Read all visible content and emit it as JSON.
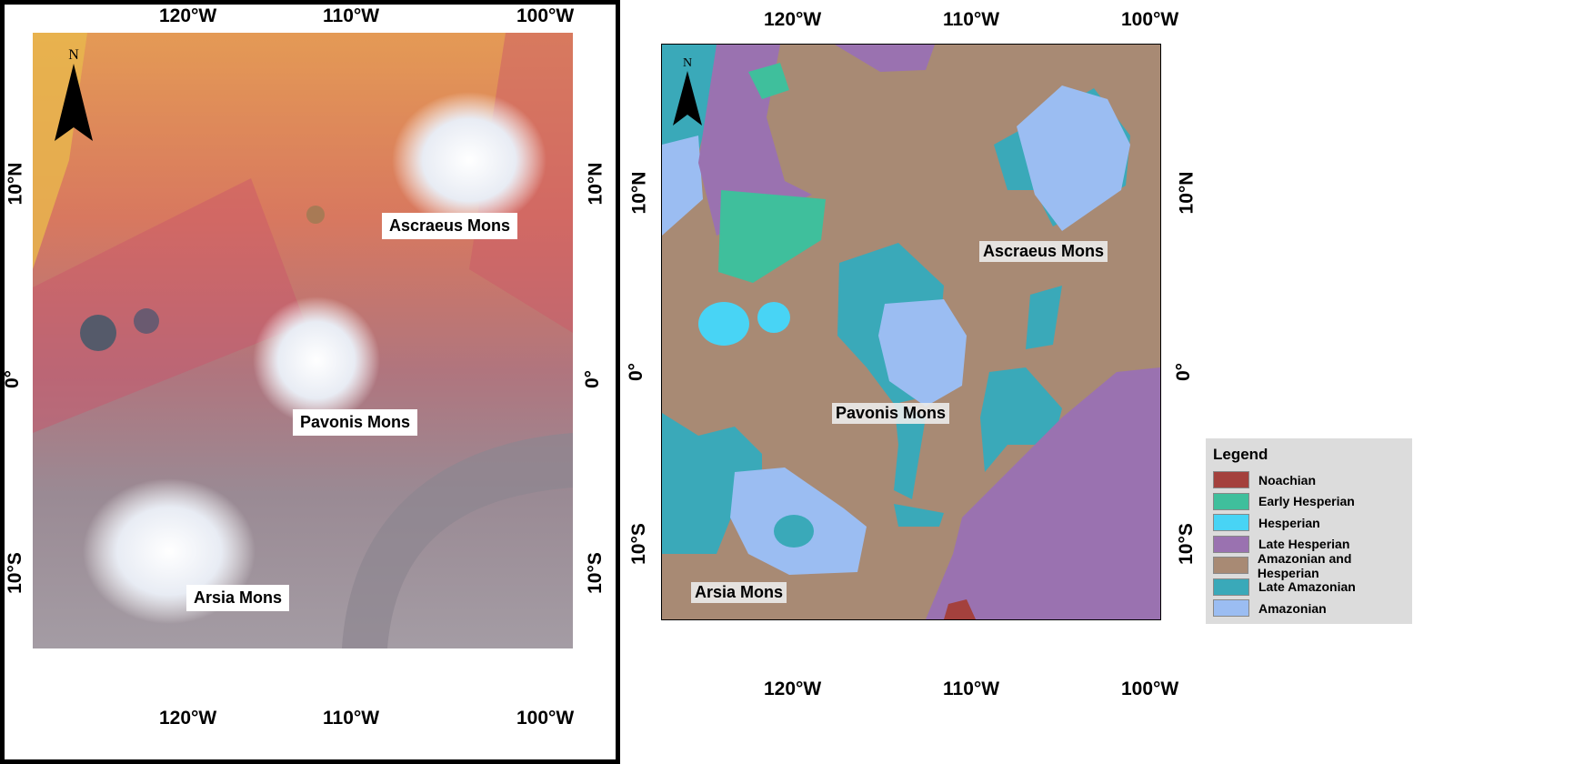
{
  "left_map": {
    "north_label": "N",
    "labels": {
      "ascraeus": "Ascraeus Mons",
      "pavonis": "Pavonis Mons",
      "arsia": "Arsia Mons"
    },
    "lon_ticks": [
      "120°W",
      "110°W",
      "100°W"
    ],
    "lat_ticks": [
      "10°N",
      "0°",
      "10°S"
    ]
  },
  "right_map": {
    "north_label": "N",
    "labels": {
      "ascraeus": "Ascraeus Mons",
      "pavonis": "Pavonis Mons",
      "arsia": "Arsia Mons"
    },
    "lon_ticks": [
      "120°W",
      "110°W",
      "100°W"
    ],
    "lat_ticks": [
      "10°N",
      "0°",
      "10°S"
    ]
  },
  "legend": {
    "title": "Legend",
    "items": [
      {
        "label": "Noachian",
        "color": "#a4413d"
      },
      {
        "label": "Early Hesperian",
        "color": "#3fbf9c"
      },
      {
        "label": "Hesperian",
        "color": "#48d4f5"
      },
      {
        "label": "Late Hesperian",
        "color": "#9a72b0"
      },
      {
        "label": "Amazonian and Hesperian",
        "color": "#a88a74"
      },
      {
        "label": "Late Amazonian",
        "color": "#3aa9b9"
      },
      {
        "label": "Amazonian",
        "color": "#9bbdf2"
      }
    ]
  }
}
